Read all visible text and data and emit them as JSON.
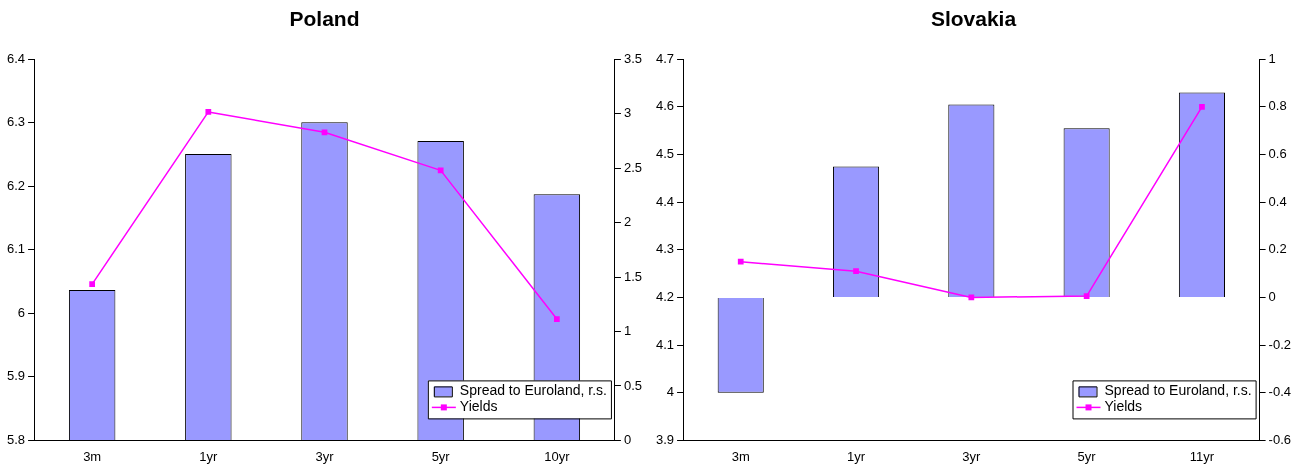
{
  "chart_data": [
    {
      "type": "bar",
      "title": "Poland",
      "categories": [
        "3m",
        "1yr",
        "3yr",
        "5yr",
        "10yr"
      ],
      "series": [
        {
          "name": "Spread to Euroland, r.s.",
          "axis": "y2",
          "color": "#9999ff",
          "values": [
            1.38,
            2.63,
            2.92,
            2.75,
            2.26
          ]
        },
        {
          "name": "Yields",
          "type": "line",
          "color": "#ff00ff",
          "values": [
            6.046,
            6.317,
            6.285,
            6.225,
            5.991
          ]
        }
      ],
      "ylim": [
        5.8,
        6.4
      ],
      "yticks": [
        5.8,
        5.9,
        6,
        6.1,
        6.2,
        6.3,
        6.4
      ],
      "y2lim": [
        0,
        3.5
      ],
      "y2ticks": [
        0,
        0.5,
        1,
        1.5,
        2,
        2.5,
        3,
        3.5
      ],
      "legend": "bottom right",
      "marker": "square",
      "grid": false
    },
    {
      "type": "bar",
      "title": "Slovakia",
      "categories": [
        "3m",
        "1yr",
        "3yr",
        "5yr",
        "11yr"
      ],
      "series": [
        {
          "name": "Spread to Euroland, r.s.",
          "axis": "y2",
          "color": "#9999ff",
          "values": [
            -0.4,
            0.55,
            0.81,
            0.71,
            0.86
          ]
        },
        {
          "name": "Yields",
          "type": "line",
          "color": "#ff00ff",
          "values": [
            4.275,
            4.255,
            4.2,
            4.203,
            4.6
          ]
        }
      ],
      "ylim": [
        3.9,
        4.7
      ],
      "yticks": [
        3.9,
        4,
        4.1,
        4.2,
        4.3,
        4.4,
        4.5,
        4.6,
        4.7
      ],
      "y2lim": [
        -0.6,
        1
      ],
      "y2ticks": [
        -0.6,
        -0.4,
        -0.2,
        0,
        0.2,
        0.4,
        0.6,
        0.8,
        1
      ],
      "legend": "bottom right",
      "marker": "square",
      "grid": false
    }
  ]
}
